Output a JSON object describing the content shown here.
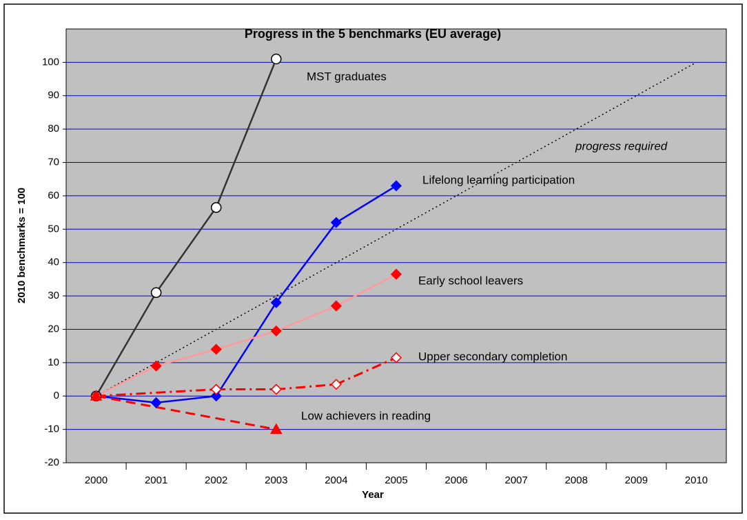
{
  "chart_data": {
    "type": "line",
    "title": "Progress in the 5 benchmarks (EU average)",
    "x_label": "Year",
    "y_label": "2010 benchmarks = 100",
    "categories": [
      "2000",
      "2001",
      "2002",
      "2003",
      "2004",
      "2005",
      "2006",
      "2007",
      "2008",
      "2009",
      "2010"
    ],
    "ylim": [
      -20,
      110
    ],
    "yticks": [
      -20,
      -10,
      0,
      10,
      20,
      30,
      40,
      50,
      60,
      70,
      80,
      90,
      100
    ],
    "grid": true,
    "series": [
      {
        "name": "MST graduates",
        "color": "#333333",
        "line": "solid",
        "marker": "circle",
        "marker_fill": "#ffffff",
        "values": [
          0,
          31,
          56.5,
          101,
          null,
          null,
          null,
          null,
          null,
          null,
          null
        ]
      },
      {
        "name": "progress required",
        "color": "#000000",
        "line": "dotted",
        "marker": "none",
        "connect_gaps": true,
        "values": [
          0,
          null,
          null,
          null,
          null,
          null,
          null,
          null,
          null,
          null,
          100
        ]
      },
      {
        "name": "Lifelong learning participation",
        "color": "#0000ff",
        "line": "solid",
        "marker": "diamond",
        "marker_fill": "#0000ff",
        "values": [
          0,
          -2,
          0,
          28,
          52,
          63,
          null,
          null,
          null,
          null,
          null
        ]
      },
      {
        "name": "Early school leavers",
        "color": "#ff9999",
        "line": "solid",
        "marker": "diamond",
        "marker_fill": "#ff0000",
        "marker_color": "#ff0000",
        "values": [
          0,
          9,
          14,
          19.5,
          27,
          36.5,
          null,
          null,
          null,
          null,
          null
        ]
      },
      {
        "name": "Upper secondary completion",
        "color": "#ff0000",
        "line": "dashdot",
        "marker": "diamond",
        "marker_fill": "#ffffff",
        "connect_gaps": true,
        "values": [
          0,
          null,
          2,
          2,
          3.5,
          11.5,
          null,
          null,
          null,
          null,
          null
        ]
      },
      {
        "name": "Low achievers in reading",
        "color": "#ff0000",
        "line": "dashed",
        "marker": "triangle",
        "marker_fill": "#ff0000",
        "connect_gaps": true,
        "values": [
          0,
          null,
          null,
          -10,
          null,
          null,
          null,
          null,
          null,
          null,
          null
        ]
      }
    ]
  }
}
